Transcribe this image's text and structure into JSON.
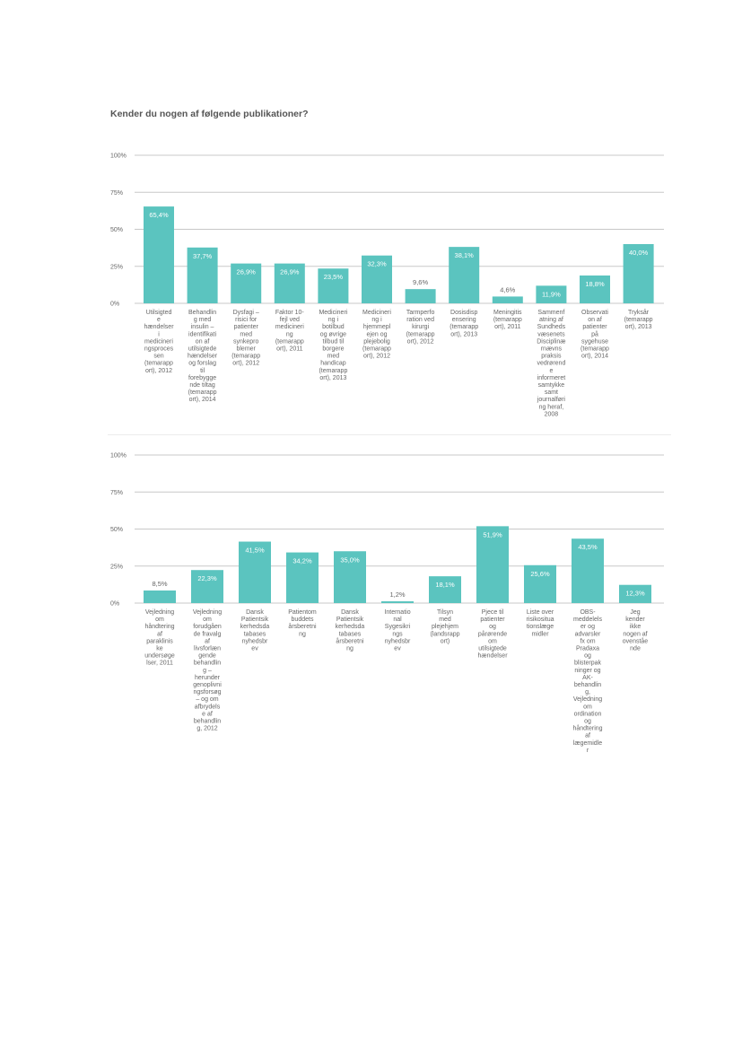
{
  "page_title": "Kender du nogen af følgende publikationer?",
  "colors": {
    "bar": "#5bc4bf",
    "grid": "#c8c8c8",
    "axis_text": "#666666",
    "label_text": "#666666",
    "value_inside": "#ffffff",
    "value_outside": "#666666"
  },
  "chart_data": [
    {
      "type": "bar",
      "title": "",
      "xlabel": "",
      "ylabel": "",
      "ylim": [
        0,
        100
      ],
      "yticks": [
        "0%",
        "25%",
        "50%",
        "75%",
        "100%"
      ],
      "grid": true,
      "value_labels": [
        "65,4%",
        "37,7%",
        "26,9%",
        "26,9%",
        "23,5%",
        "32,3%",
        "9,6%",
        "38,1%",
        "4,6%",
        "11,9%",
        "18,8%",
        "40,0%"
      ],
      "values": [
        65.4,
        37.7,
        26.9,
        26.9,
        23.5,
        32.3,
        9.6,
        38.1,
        4.6,
        11.9,
        18.8,
        40.0
      ],
      "categories": [
        [
          "Utilsigted",
          "e",
          "hændelser",
          "i",
          "medicineri",
          "ngsproces",
          "sen",
          "(temarapp",
          "ort), 2012"
        ],
        [
          "Behandlin",
          "g med",
          "insulin –",
          "identifikati",
          "on af",
          "utilsigtede",
          "hændelser",
          "og forslag",
          "til",
          "forebygge",
          "nde tiltag",
          "(temarapp",
          "ort), 2014"
        ],
        [
          "Dysfagi –",
          "risici for",
          "patienter",
          "med",
          "synkepro",
          "blemer",
          "(temarapp",
          "ort), 2012"
        ],
        [
          "Faktor 10-",
          "fejl ved",
          "medicineri",
          "ng",
          "(temarapp",
          "ort), 2011"
        ],
        [
          "Medicineri",
          "ng i",
          "botilbud",
          "og øvrige",
          "tilbud til",
          "borgere",
          "med",
          "handicap",
          "(temarapp",
          "ort), 2013"
        ],
        [
          "Medicineri",
          "ng i",
          "hjemmepl",
          "ejen og",
          "plejebolig",
          "(temarapp",
          "ort), 2012"
        ],
        [
          "Tarmperfo",
          "ration ved",
          "kirurgi",
          "(temarapp",
          "ort), 2012"
        ],
        [
          "Dosisdisp",
          "ensering",
          "(temarapp",
          "ort), 2013"
        ],
        [
          "Meningitis",
          "(temarapp",
          "ort), 2011"
        ],
        [
          "Sammenf",
          "atning af",
          "Sundheds",
          "væsenets",
          "Disciplinæ",
          "rnævns",
          "praksis",
          "vedrørend",
          "e",
          "informeret",
          "samtykke",
          "samt",
          "journalføri",
          "ng heraf,",
          "2008"
        ],
        [
          "Observati",
          "on af",
          "patienter",
          "på",
          "sygehuse",
          "(temarapp",
          "ort), 2014"
        ],
        [
          "Tryksår",
          "(temarapp",
          "ort), 2013"
        ]
      ]
    },
    {
      "type": "bar",
      "title": "",
      "xlabel": "",
      "ylabel": "",
      "ylim": [
        0,
        100
      ],
      "yticks": [
        "0%",
        "25%",
        "50%",
        "75%",
        "100%"
      ],
      "grid": true,
      "value_labels": [
        "8,5%",
        "22,3%",
        "41,5%",
        "34,2%",
        "35,0%",
        "1,2%",
        "18,1%",
        "51,9%",
        "25,6%",
        "43,5%",
        "12,3%"
      ],
      "values": [
        8.5,
        22.3,
        41.5,
        34.2,
        35.0,
        1.2,
        18.1,
        51.9,
        25.6,
        43.5,
        12.3
      ],
      "categories": [
        [
          "Vejledning",
          "om",
          "håndtering",
          "af",
          "paraklinis",
          "ke",
          "undersøge",
          "lser, 2011"
        ],
        [
          "Vejledning",
          "om",
          "forudgåen",
          "de fravalg",
          "af",
          "livsforlæn",
          "gende",
          "behandlin",
          "g –",
          "herunder",
          "genoplivni",
          "ngsforsøg",
          "– og om",
          "afbrydels",
          "e af",
          "behandlin",
          "g, 2012"
        ],
        [
          "Dansk",
          "Patientsik",
          "kerhedsda",
          "tabases",
          "nyhedsbr",
          "ev"
        ],
        [
          "Patientom",
          "buddets",
          "årsberetni",
          "ng"
        ],
        [
          "Dansk",
          "Patientsik",
          "kerhedsda",
          "tabases",
          "årsberetni",
          "ng"
        ],
        [
          "Internatio",
          "nal",
          "Sygesikri",
          "ngs",
          "nyhedsbr",
          "ev"
        ],
        [
          "Tilsyn",
          "med",
          "plejehjem",
          "(landsrapp",
          "ort)"
        ],
        [
          "Pjece til",
          "patienter",
          "og",
          "pårørende",
          "om",
          "utilsigtede",
          "hændelser"
        ],
        [
          "Liste over",
          "risikositua",
          "tionslæge",
          "midler"
        ],
        [
          "OBS-",
          "meddelels",
          "er og",
          "advarsler",
          "fx om",
          "Pradaxa",
          "og",
          "blisterpak",
          "ninger og",
          "AK-",
          "behandlin",
          "g,",
          "Vejledning",
          "om",
          "ordination",
          "og",
          "håndtering",
          "af",
          "lægemidle",
          "r"
        ],
        [
          "Jeg",
          "kender",
          "ikke",
          "nogen af",
          "ovenståe",
          "nde"
        ]
      ]
    }
  ]
}
